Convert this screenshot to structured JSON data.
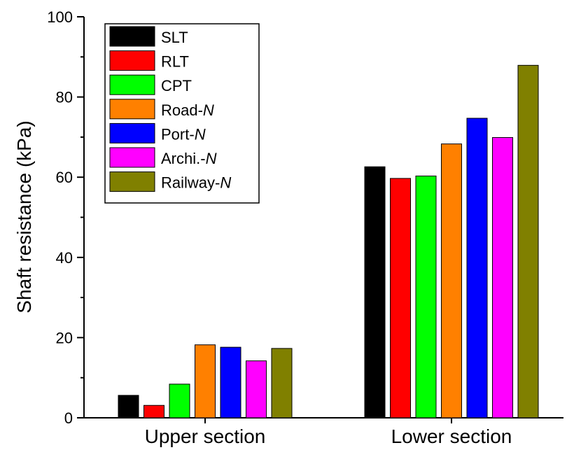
{
  "chart_data": {
    "type": "bar",
    "categories": [
      "Upper section",
      "Lower section"
    ],
    "series": [
      {
        "name": "SLT",
        "name_suffix": "",
        "color": "#000000",
        "values": [
          5.6,
          62.6
        ]
      },
      {
        "name": "RLT",
        "name_suffix": "",
        "color": "#ff0000",
        "values": [
          3.1,
          59.7
        ]
      },
      {
        "name": "CPT",
        "name_suffix": "",
        "color": "#00ff00",
        "values": [
          8.4,
          60.3
        ]
      },
      {
        "name": "Road-",
        "name_suffix": "N",
        "color": "#ff8000",
        "values": [
          18.2,
          68.3
        ]
      },
      {
        "name": "Port-",
        "name_suffix": "N",
        "color": "#0000ff",
        "values": [
          17.6,
          74.7
        ]
      },
      {
        "name": "Archi.-",
        "name_suffix": "N",
        "color": "#ff00ff",
        "values": [
          14.2,
          69.9
        ]
      },
      {
        "name": "Railway-",
        "name_suffix": "N",
        "color": "#808000",
        "values": [
          17.3,
          87.9
        ]
      }
    ],
    "title": "",
    "xlabel": "",
    "ylabel": "Shaft resistance (kPa)",
    "ylim": [
      0,
      100
    ],
    "yticks": [
      0,
      20,
      40,
      60,
      80,
      100
    ],
    "yticks_minor_step": 10,
    "grid": false,
    "legend_position": "top-left"
  }
}
